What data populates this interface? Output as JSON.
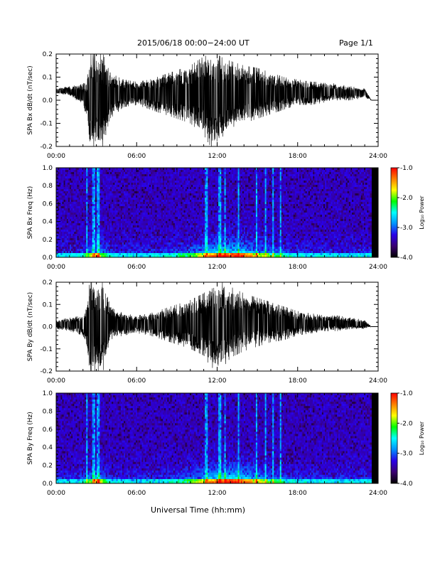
{
  "header": {
    "title": "2015/06/18  00:00−24:00 UT",
    "page": "Page 1/1"
  },
  "xlabel": "Universal Time (hh:mm)",
  "colorbar": {
    "label": "Log₁₀ Power",
    "ticks": [
      "-1.0",
      "-2.0",
      "-3.0",
      "-4.0"
    ],
    "range": [
      -4.0,
      -1.0
    ],
    "colormap": [
      "#000000",
      "#3a0070",
      "#2a00e8",
      "#0090ff",
      "#00ffff",
      "#00ff00",
      "#ffff00",
      "#ff8000",
      "#ff0000"
    ]
  },
  "chart_data": [
    {
      "type": "line",
      "ylabel": "SPA Bx dB/dt (nT/sec)",
      "ylim": [
        -0.2,
        0.2
      ],
      "yticks": [
        "0.2",
        "0.1",
        "0.0",
        "-0.1",
        "-0.2"
      ],
      "xticks": [
        "00:00",
        "06:00",
        "12:00",
        "18:00",
        "24:00"
      ],
      "x_hours": [
        0,
        1,
        2,
        2.3,
        2.5,
        3,
        3.5,
        4,
        5,
        6,
        7,
        8,
        9,
        10,
        11,
        11.5,
        12,
        12.5,
        13,
        14,
        15,
        16,
        17,
        18,
        19,
        20,
        21,
        22,
        23,
        23.5,
        24
      ],
      "envelope_upper": [
        0.05,
        0.06,
        0.07,
        0.1,
        0.2,
        0.2,
        0.2,
        0.12,
        0.09,
        0.08,
        0.09,
        0.11,
        0.13,
        0.15,
        0.19,
        0.2,
        0.2,
        0.18,
        0.17,
        0.15,
        0.14,
        0.12,
        0.1,
        0.09,
        0.08,
        0.08,
        0.07,
        0.06,
        0.05,
        0.0,
        0.0
      ],
      "envelope_lower": [
        0.03,
        0.02,
        -0.02,
        -0.1,
        -0.2,
        -0.2,
        -0.2,
        -0.08,
        -0.03,
        -0.02,
        -0.04,
        -0.06,
        -0.08,
        -0.1,
        -0.15,
        -0.2,
        -0.2,
        -0.15,
        -0.12,
        -0.1,
        -0.08,
        -0.06,
        -0.04,
        -0.02,
        -0.02,
        -0.01,
        0.0,
        0.0,
        0.01,
        0.0,
        0.0
      ],
      "baseline_end": 0.0
    },
    {
      "type": "heatmap",
      "ylabel": "SPA Bx Freq (Hz)",
      "ylim": [
        0.0,
        1.0
      ],
      "yticks": [
        "1.0",
        "0.8",
        "0.6",
        "0.4",
        "0.2",
        "0.0"
      ],
      "xticks": [
        "00:00",
        "06:00",
        "12:00",
        "18:00",
        "24:00"
      ],
      "zlim": [
        -4.0,
        -1.0
      ],
      "data_end_hour": 23.5,
      "bright_columns_hours": [
        2.3,
        2.8,
        3.05,
        3.2,
        11.2,
        12.2,
        12.6,
        13.6,
        14.9,
        15.6,
        16.2,
        16.7
      ],
      "low_freq_enhancement": "strong near 3 h and 11-15 h"
    },
    {
      "type": "line",
      "ylabel": "SPA By dB/dt (nT/sec)",
      "ylim": [
        -0.2,
        0.2
      ],
      "yticks": [
        "0.2",
        "0.1",
        "0.0",
        "-0.1",
        "-0.2"
      ],
      "xticks": [
        "00:00",
        "06:00",
        "12:00",
        "18:00",
        "24:00"
      ],
      "x_hours": [
        0,
        1,
        2,
        2.3,
        2.5,
        3,
        3.5,
        4,
        5,
        6,
        7,
        8,
        9,
        10,
        11,
        11.5,
        12,
        12.5,
        13,
        14,
        15,
        16,
        17,
        18,
        19,
        20,
        21,
        22,
        23,
        23.5,
        24
      ],
      "envelope_upper": [
        0.03,
        0.04,
        0.05,
        0.1,
        0.2,
        0.2,
        0.2,
        0.1,
        0.06,
        0.05,
        0.06,
        0.08,
        0.1,
        0.12,
        0.15,
        0.19,
        0.2,
        0.2,
        0.18,
        0.15,
        0.13,
        0.11,
        0.09,
        0.07,
        0.06,
        0.05,
        0.05,
        0.04,
        0.03,
        0.0,
        0.0
      ],
      "envelope_lower": [
        -0.01,
        -0.02,
        -0.04,
        -0.1,
        -0.2,
        -0.2,
        -0.2,
        -0.06,
        -0.04,
        -0.03,
        -0.04,
        -0.06,
        -0.08,
        -0.1,
        -0.13,
        -0.18,
        -0.2,
        -0.18,
        -0.14,
        -0.11,
        -0.09,
        -0.07,
        -0.06,
        -0.04,
        -0.03,
        -0.02,
        -0.02,
        -0.01,
        -0.01,
        0.0,
        0.0
      ],
      "baseline_end": 0.0
    },
    {
      "type": "heatmap",
      "ylabel": "SPA By Freq (Hz)",
      "ylim": [
        0.0,
        1.0
      ],
      "yticks": [
        "1.0",
        "0.8",
        "0.6",
        "0.4",
        "0.2",
        "0.0"
      ],
      "xticks": [
        "00:00",
        "06:00",
        "12:00",
        "18:00",
        "24:00"
      ],
      "zlim": [
        -4.0,
        -1.0
      ],
      "data_end_hour": 23.5,
      "bright_columns_hours": [
        2.3,
        2.8,
        3.05,
        3.2,
        11.2,
        12.2,
        12.6,
        13.6,
        14.9,
        15.6,
        16.2,
        16.7
      ],
      "low_freq_enhancement": "strong near 3 h and 11-16 h"
    }
  ]
}
